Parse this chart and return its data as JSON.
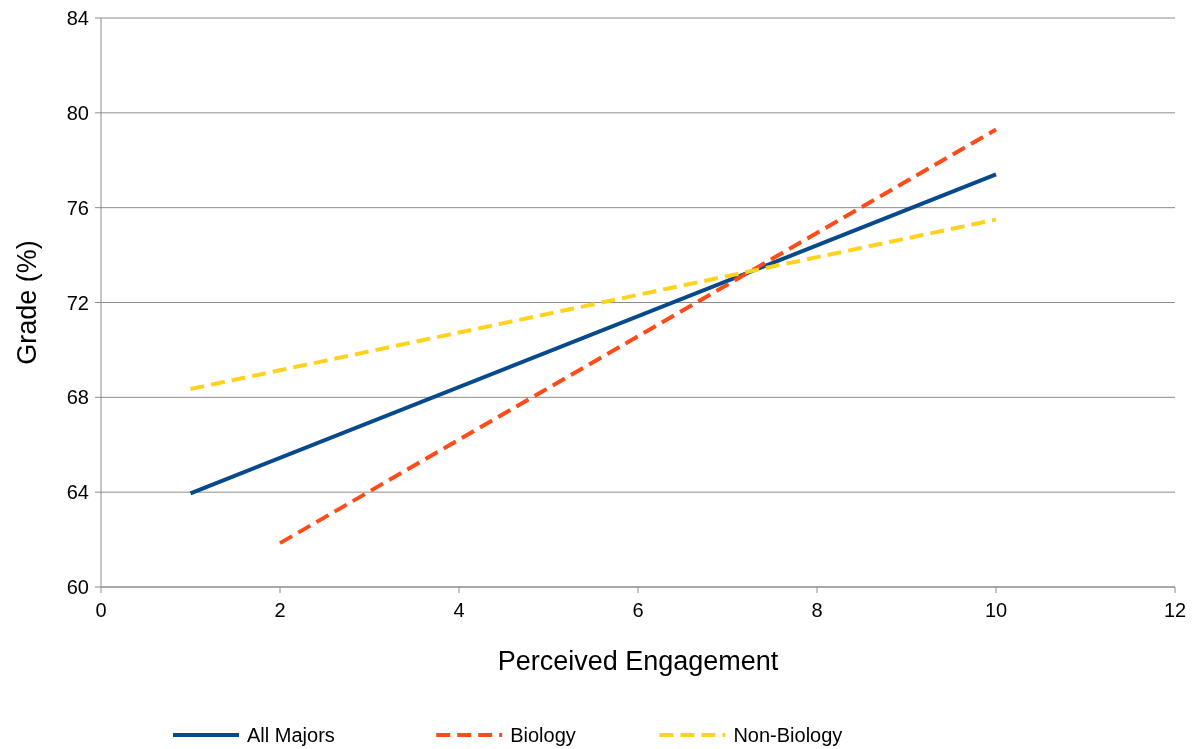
{
  "chart_data": {
    "type": "line",
    "xlabel": "Perceived Engagement",
    "ylabel": "Grade (%)",
    "xlim": [
      0,
      12
    ],
    "xticks": [
      0,
      2,
      4,
      6,
      8,
      10,
      12
    ],
    "ylim": [
      60,
      84
    ],
    "yticks": [
      60,
      64,
      68,
      72,
      76,
      80,
      84
    ],
    "grid": "y",
    "legend": "bottom",
    "series": [
      {
        "name": "All Majors",
        "color": "#064a8c",
        "x": [
          1,
          10
        ],
        "values": [
          63.95,
          77.4
        ],
        "line_style": "solid"
      },
      {
        "name": "Biology",
        "color": "#ff4b19",
        "x": [
          2,
          10
        ],
        "values": [
          61.85,
          79.3
        ],
        "line_style": "dashed"
      },
      {
        "name": "Non-Biology",
        "color": "#ffd21e",
        "x": [
          1,
          10
        ],
        "values": [
          68.35,
          75.5
        ],
        "line_style": "dashed"
      }
    ]
  }
}
